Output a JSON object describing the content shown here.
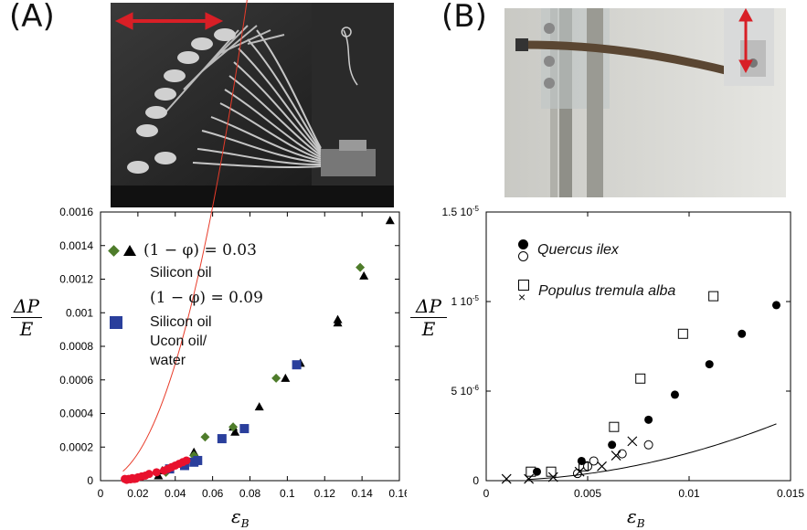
{
  "panels": {
    "a_label": "(A)",
    "b_label": "(B)"
  },
  "photos": {
    "a": {
      "description_icon": "flexible-fibers-photo"
    },
    "b": {
      "description_icon": "branch-bending-photo"
    }
  },
  "colors": {
    "red_points": "#e8112d",
    "black_points": "#000000",
    "green_points": "#4e7c2a",
    "blue_points": "#2a3f9c",
    "fit_a": "#e83c2a",
    "fit_b": "#000000",
    "arrow": "#d81f26"
  },
  "chart_data": [
    {
      "type": "scatter",
      "xlabel": "ε_B",
      "ylabel": "ΔP / E",
      "xlim": [
        0,
        0.16
      ],
      "ylim": [
        0,
        0.0016
      ],
      "xticks": [
        0,
        0.02,
        0.04,
        0.06,
        0.08,
        0.1,
        0.12,
        0.14,
        0.16
      ],
      "xtick_labels": [
        "0",
        "0.02",
        "0.04",
        "0.06",
        "0.08",
        "0.1",
        "0.12",
        "0.14",
        "0.16"
      ],
      "yticks": [
        0,
        0.0002,
        0.0004,
        0.0006,
        0.0008,
        0.001,
        0.0012,
        0.0014,
        0.0016
      ],
      "ytick_labels": [
        "0",
        "0.0002",
        "0.0004",
        "0.0006",
        "0.0008",
        "0.001",
        "0.0012",
        "0.0014",
        "0.0016"
      ],
      "legend": {
        "line1": "(1 − φ) = 0.03",
        "line2": "Silicon oil",
        "line3": "(1 − φ) = 0.09",
        "line4": "Silicon oil",
        "line5": "Ucon oil/",
        "line6": "water"
      },
      "series": [
        {
          "marker": "triangle",
          "color": "#000000",
          "x": [
            0.031,
            0.033,
            0.05,
            0.052,
            0.071,
            0.072,
            0.085,
            0.099,
            0.107,
            0.127,
            0.127,
            0.141,
            0.155
          ],
          "y": [
            3e-05,
            6e-05,
            0.00017,
            0.00013,
            0.00032,
            0.00029,
            0.00044,
            0.00061,
            0.0007,
            0.00096,
            0.00094,
            0.00122,
            0.00155
          ]
        },
        {
          "marker": "diamond",
          "color": "#4e7c2a",
          "x": [
            0.035,
            0.05,
            0.056,
            0.071,
            0.094,
            0.139
          ],
          "y": [
            5e-05,
            0.00015,
            0.00026,
            0.00032,
            0.00061,
            0.00127
          ]
        },
        {
          "marker": "square",
          "color": "#2a3f9c",
          "x": [
            0.037,
            0.045,
            0.05,
            0.052,
            0.065,
            0.077,
            0.105
          ],
          "y": [
            7e-05,
            9e-05,
            0.00011,
            0.00012,
            0.00025,
            0.00031,
            0.00069
          ]
        },
        {
          "marker": "circle",
          "color": "#e8112d",
          "x": [
            0.013,
            0.014,
            0.015,
            0.016,
            0.017,
            0.018,
            0.019,
            0.02,
            0.022,
            0.024,
            0.026,
            0.03,
            0.034,
            0.036,
            0.038,
            0.04,
            0.042,
            0.044,
            0.046
          ],
          "y": [
            1e-05,
            5e-06,
            1e-05,
            8e-06,
            1.5e-05,
            1e-05,
            1.2e-05,
            2e-05,
            2.5e-05,
            3e-05,
            4e-05,
            5e-05,
            6e-05,
            7e-05,
            8e-05,
            9e-05,
            0.0001,
            0.00011,
            0.00012
          ]
        }
      ],
      "fit": {
        "type": "power",
        "coef": 0.6,
        "exponent": 2.1,
        "xmin": 0.012,
        "xmax": 0.156
      }
    },
    {
      "type": "scatter",
      "xlabel": "ε_B",
      "ylabel": "ΔP / E",
      "xlim": [
        0,
        0.015
      ],
      "ylim": [
        0,
        1.5e-05
      ],
      "xticks": [
        0,
        0.005,
        0.01,
        0.015
      ],
      "xtick_labels": [
        "0",
        "0.005",
        "0.01",
        "0.015"
      ],
      "yticks": [
        0,
        5e-06,
        1e-05,
        1.5e-05
      ],
      "ytick_labels": [
        "0",
        "5 10-6",
        "1 10-5",
        "1.5 10-5"
      ],
      "legend": {
        "quercus": "Quercus ilex",
        "populus": "Populus tremula alba"
      },
      "series": [
        {
          "name": "Quercus ilex",
          "marker": "filled-circle",
          "color": "#000000",
          "x": [
            0.0025,
            0.0047,
            0.0062,
            0.008,
            0.0093,
            0.011,
            0.0126,
            0.0143
          ],
          "y": [
            5e-07,
            1.1e-06,
            2e-06,
            3.4e-06,
            4.8e-06,
            6.5e-06,
            8.2e-06,
            9.8e-06
          ]
        },
        {
          "name": "Quercus ilex",
          "marker": "open-circle",
          "color": "#000000",
          "x": [
            0.0045,
            0.005,
            0.0053,
            0.0067,
            0.008
          ],
          "y": [
            4e-07,
            8e-07,
            1.1e-06,
            1.5e-06,
            2e-06
          ]
        },
        {
          "name": "Populus tremula alba",
          "marker": "open-square",
          "color": "#000000",
          "x": [
            0.0022,
            0.0032,
            0.0048,
            0.0063,
            0.0076,
            0.0097,
            0.0112
          ],
          "y": [
            5e-07,
            5e-07,
            8e-07,
            3e-06,
            5.7e-06,
            8.2e-06,
            1.03e-05
          ]
        },
        {
          "name": "Populus tremula alba",
          "marker": "cross",
          "color": "#000000",
          "x": [
            0.001,
            0.0021,
            0.0033,
            0.0046,
            0.0057,
            0.0064,
            0.0072
          ],
          "y": [
            1e-07,
            1e-07,
            2e-07,
            5e-07,
            8e-07,
            1.4e-06,
            2.2e-06
          ]
        }
      ],
      "fit": {
        "type": "power",
        "coef": 0.0155,
        "exponent": 2.0,
        "xmin": 0.002,
        "xmax": 0.0143
      }
    }
  ]
}
